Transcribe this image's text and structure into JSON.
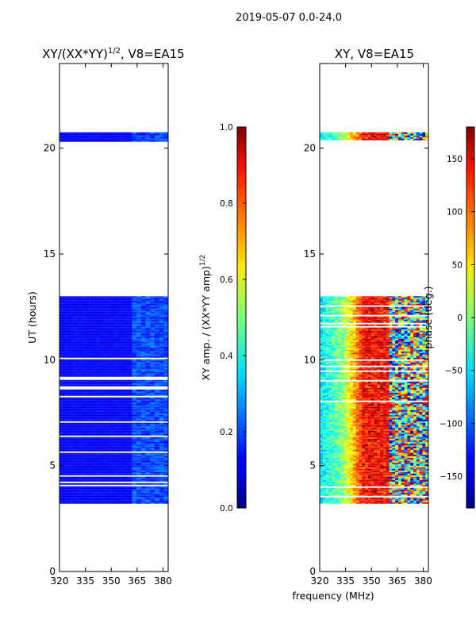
{
  "suptitle": "2019-05-07 0.0-24.0",
  "xlabel": "frequency (MHz)",
  "chart_data": [
    {
      "type": "heatmap",
      "title": "XY/(XX*YY)",
      "title_exp": "1/2",
      "title_tail": ", V8=EA15",
      "xlabel": "",
      "ylabel": "UT (hours)",
      "xlim": [
        320,
        383
      ],
      "ylim": [
        0,
        24
      ],
      "xticks": [
        320,
        335,
        350,
        365,
        380
      ],
      "yticks": [
        0,
        5,
        10,
        15,
        20
      ],
      "data_rows": [
        [
          3.2,
          13.0
        ],
        [
          20.3,
          20.75
        ]
      ],
      "colorbar": {
        "label": "XY amp. / (XX*YY amp)",
        "label_exp": "1/2",
        "range": [
          0.0,
          1.0
        ],
        "ticks": [
          "0.0",
          "0.2",
          "0.4",
          "0.6",
          "0.8",
          "1.0"
        ],
        "colormap": "jet"
      }
    },
    {
      "type": "heatmap",
      "title": "XY, V8=EA15",
      "xlabel": "frequency (MHz)",
      "ylabel": "",
      "xlim": [
        320,
        383
      ],
      "ylim": [
        0,
        24
      ],
      "xticks": [
        320,
        335,
        350,
        365,
        380
      ],
      "yticks": [
        0,
        5,
        10,
        15,
        20
      ],
      "data_rows": [
        [
          3.2,
          13.0
        ],
        [
          20.3,
          20.75
        ]
      ],
      "colorbar": {
        "label": "phase (deg.)",
        "range": [
          -180,
          180
        ],
        "ticks": [
          "−150",
          "−100",
          "−50",
          "0",
          "50",
          "100",
          "150"
        ],
        "colormap": "jet"
      }
    }
  ]
}
